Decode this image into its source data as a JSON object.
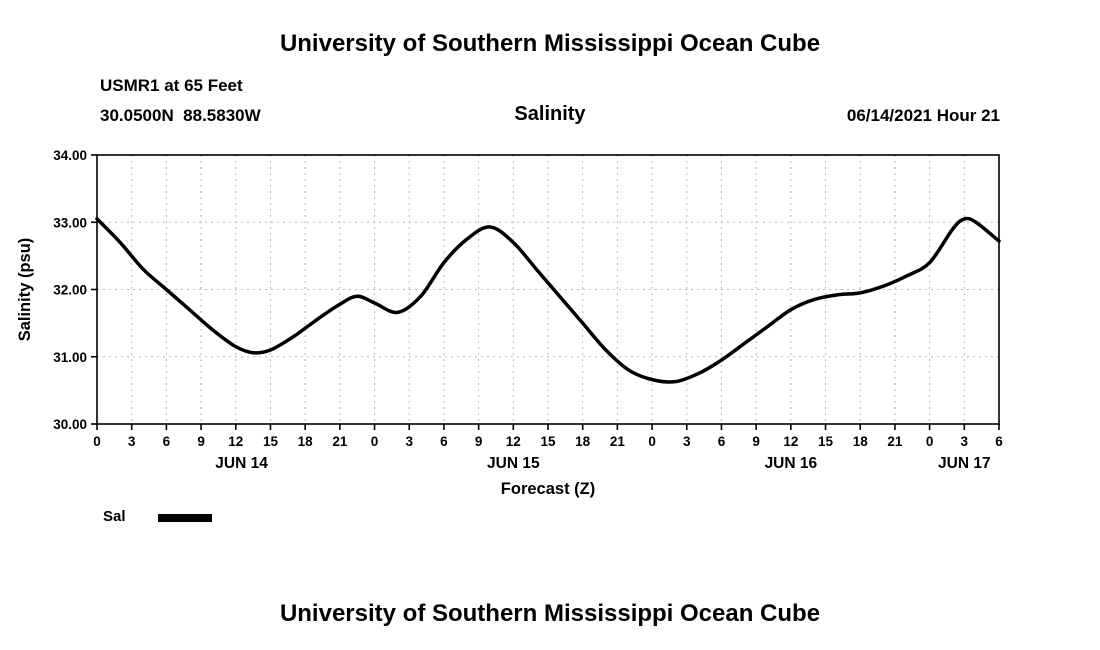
{
  "header": {
    "title": "University of Southern Mississippi Ocean Cube",
    "station": "USMR1 at 65 Feet",
    "coordinates": "30.0500N  88.5830W",
    "chart_title": "Salinity",
    "datetime": "06/14/2021 Hour 21"
  },
  "footer": {
    "title": "University of Southern Mississippi Ocean Cube"
  },
  "legend": {
    "label": "Sal",
    "line_color": "#000000"
  },
  "chart_data": {
    "type": "line",
    "title": "Salinity",
    "xlabel": "Forecast (Z)",
    "ylabel": "Salinity (psu)",
    "ylim": [
      30.0,
      34.0
    ],
    "xlim": [
      0,
      78
    ],
    "grid": true,
    "grid_color": "#b8b8b8",
    "line_color": "#000000",
    "y_tick_labels": [
      "30.00",
      "31.00",
      "32.00",
      "33.00",
      "34.00"
    ],
    "x_tick_interval_hours": 3,
    "x_tick_labels": [
      "0",
      "3",
      "6",
      "9",
      "12",
      "15",
      "18",
      "21",
      "0",
      "3",
      "6",
      "9",
      "12",
      "15",
      "18",
      "21",
      "0",
      "3",
      "6",
      "9",
      "12",
      "15",
      "18",
      "21",
      "0",
      "3",
      "6"
    ],
    "day_labels": [
      {
        "label": "JUN 14",
        "hour": 12.5
      },
      {
        "label": "JUN 15",
        "hour": 36
      },
      {
        "label": "JUN 16",
        "hour": 60
      },
      {
        "label": "JUN 17",
        "hour": 75
      }
    ],
    "series": [
      {
        "name": "Sal",
        "x": [
          0,
          2,
          4,
          6,
          8,
          10,
          12,
          13.5,
          15,
          17,
          19,
          21,
          22.5,
          24,
          26,
          28,
          30,
          32,
          34,
          36,
          38,
          40,
          42,
          44,
          46,
          48,
          50,
          52,
          54,
          56,
          58,
          60,
          62,
          64,
          66,
          68,
          70,
          72,
          74,
          75,
          76,
          78
        ],
        "values": [
          33.05,
          32.7,
          32.3,
          32.0,
          31.7,
          31.4,
          31.15,
          31.06,
          31.1,
          31.3,
          31.55,
          31.78,
          31.9,
          31.8,
          31.66,
          31.9,
          32.4,
          32.75,
          32.93,
          32.7,
          32.3,
          31.9,
          31.5,
          31.1,
          30.8,
          30.66,
          30.63,
          30.75,
          30.95,
          31.2,
          31.45,
          31.7,
          31.85,
          31.92,
          31.95,
          32.05,
          32.2,
          32.4,
          32.9,
          33.05,
          33.0,
          32.72
        ]
      }
    ]
  }
}
